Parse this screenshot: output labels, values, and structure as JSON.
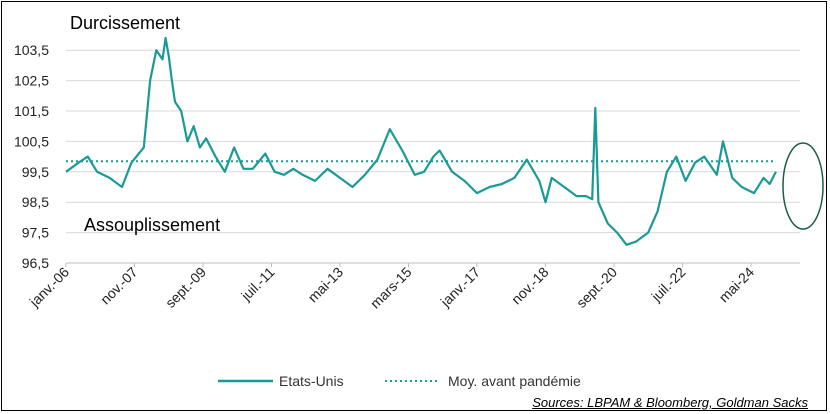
{
  "chart_data": {
    "type": "line",
    "title": "",
    "xlabel": "",
    "ylabel": "",
    "ylim": [
      96.5,
      104
    ],
    "yticks": [
      "103,5",
      "102,5",
      "101,5",
      "100,5",
      "99,5",
      "98,5",
      "97,5",
      "96,5"
    ],
    "xticks": [
      "janv.-06",
      "nov.-07",
      "sept.-09",
      "juil.-11",
      "mai-13",
      "mars-15",
      "janv.-17",
      "nov.-18",
      "sept.-20",
      "juil.-22",
      "mai-24"
    ],
    "grid": "horizontal",
    "legend_position": "bottom",
    "annotations": {
      "top": "Durcissement",
      "bottom": "Assouplissement"
    },
    "series": [
      {
        "name": "Etats-Unis",
        "color": "#1a9a96",
        "style": "solid",
        "x": [
          "2006-01",
          "2006-05",
          "2006-08",
          "2006-11",
          "2007-03",
          "2007-07",
          "2007-10",
          "2008-02",
          "2008-04",
          "2008-06",
          "2008-08",
          "2008-09",
          "2008-10",
          "2008-11",
          "2008-12",
          "2009-02",
          "2009-04",
          "2009-06",
          "2009-08",
          "2009-10",
          "2010-01",
          "2010-04",
          "2010-07",
          "2010-10",
          "2011-01",
          "2011-05",
          "2011-08",
          "2011-11",
          "2012-02",
          "2012-05",
          "2012-09",
          "2013-01",
          "2013-05",
          "2013-09",
          "2014-01",
          "2014-05",
          "2014-09",
          "2015-01",
          "2015-05",
          "2015-08",
          "2015-11",
          "2016-01",
          "2016-05",
          "2016-09",
          "2017-01",
          "2017-05",
          "2017-09",
          "2018-01",
          "2018-05",
          "2018-09",
          "2018-11",
          "2019-01",
          "2019-05",
          "2019-09",
          "2019-12",
          "2020-02",
          "2020-03",
          "2020-04",
          "2020-07",
          "2020-10",
          "2021-01",
          "2021-04",
          "2021-08",
          "2021-11",
          "2022-02",
          "2022-05",
          "2022-08",
          "2022-11",
          "2023-02",
          "2023-06",
          "2023-08",
          "2023-11",
          "2024-02",
          "2024-06",
          "2024-09",
          "2024-11",
          "2025-01"
        ],
        "values": [
          99.5,
          99.8,
          100.0,
          99.5,
          99.3,
          99.0,
          99.8,
          100.3,
          102.5,
          103.5,
          103.2,
          103.9,
          103.3,
          102.5,
          101.8,
          101.5,
          100.5,
          101.0,
          100.3,
          100.6,
          100.0,
          99.5,
          100.3,
          99.6,
          99.6,
          100.1,
          99.5,
          99.4,
          99.6,
          99.4,
          99.2,
          99.6,
          99.3,
          99.0,
          99.4,
          99.9,
          100.9,
          100.2,
          99.4,
          99.5,
          100.0,
          100.2,
          99.5,
          99.2,
          98.8,
          99.0,
          99.1,
          99.3,
          99.9,
          99.2,
          98.5,
          99.3,
          99.0,
          98.7,
          98.7,
          98.6,
          101.6,
          98.5,
          97.8,
          97.5,
          97.1,
          97.2,
          97.5,
          98.2,
          99.5,
          100.0,
          99.2,
          99.8,
          100.0,
          99.4,
          100.5,
          99.3,
          99.0,
          98.8,
          99.3,
          99.1,
          99.5
        ]
      },
      {
        "name": "Moy. avant pandémie",
        "color": "#1a9a96",
        "style": "dotted",
        "x": [
          "2006-01",
          "2025-01"
        ],
        "values": [
          99.85,
          99.85
        ]
      }
    ]
  },
  "highlight": {
    "shape": "ellipse",
    "color": "#1d5c48",
    "target_period": "2024-2025"
  },
  "source": "Sources: LBPAM & Bloomberg, Goldman Sacks"
}
